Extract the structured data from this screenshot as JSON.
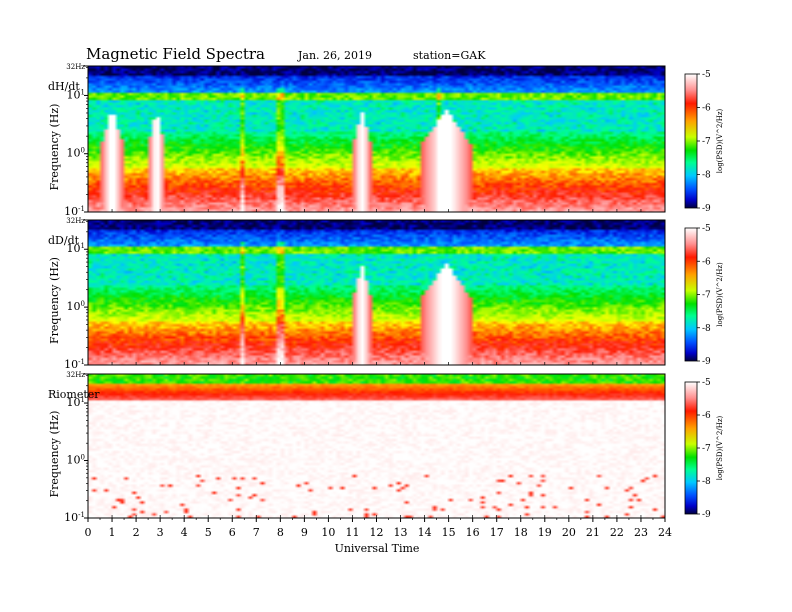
{
  "header": {
    "title": "Magnetic  Field  Spectra",
    "date": "Jan. 26, 2019",
    "station": "station=GAK"
  },
  "colors": {
    "colormap": [
      "#000040",
      "#0000c8",
      "#0050ff",
      "#00c8ff",
      "#00ff90",
      "#00e000",
      "#c8ff00",
      "#ffff00",
      "#ffa000",
      "#ff2000",
      "#e00000",
      "#ff9090",
      "#ffffff"
    ]
  },
  "chart_data": [
    {
      "type": "heatmap",
      "panel_label": "dH/dt",
      "ylabel": "Frequency  (Hz)",
      "xlabel": "",
      "y_scale": "log",
      "ylim_hz": [
        0.1,
        32
      ],
      "yticks": [
        {
          "label": "32Hz",
          "value": 32
        },
        {
          "label": "10",
          "sup": "1",
          "value": 10
        },
        {
          "label": "10",
          "sup": "0",
          "value": 1
        },
        {
          "label": "10",
          "sup": "-1",
          "value": 0.1
        }
      ],
      "xlim": [
        0,
        24
      ],
      "colorbar": {
        "label": "log(PSD)(V^2/Hz)",
        "range": [
          -9,
          -5
        ],
        "ticks": [
          "-5",
          "-6",
          "-7",
          "-8",
          "-9"
        ]
      },
      "features": {
        "quiet_hours": [
          [
            0.5,
            1.5
          ],
          [
            2.5,
            3.2
          ],
          [
            11,
            11.8
          ],
          [
            13.8,
            16
          ]
        ],
        "spikes_hours": [
          6.4,
          8.0,
          14.6
        ]
      }
    },
    {
      "type": "heatmap",
      "panel_label": "dD/dt",
      "ylabel": "Frequency  (Hz)",
      "xlabel": "",
      "y_scale": "log",
      "ylim_hz": [
        0.1,
        32
      ],
      "yticks": [
        {
          "label": "32Hz",
          "value": 32
        },
        {
          "label": "10",
          "sup": "1",
          "value": 10
        },
        {
          "label": "10",
          "sup": "0",
          "value": 1
        },
        {
          "label": "10",
          "sup": "-1",
          "value": 0.1
        }
      ],
      "xlim": [
        0,
        24
      ],
      "colorbar": {
        "label": "log(PSD)(V^2/Hz)",
        "range": [
          -9,
          -5
        ],
        "ticks": [
          "-5",
          "-6",
          "-7",
          "-8",
          "-9"
        ]
      },
      "features": {
        "quiet_hours": [
          [
            11,
            11.8
          ],
          [
            13.8,
            16
          ]
        ],
        "spikes_hours": [
          6.4,
          8.0
        ]
      }
    },
    {
      "type": "heatmap",
      "panel_label": "Riometer",
      "ylabel": "Frequency  (Hz)",
      "xlabel": "Universal  Time",
      "y_scale": "log",
      "ylim_hz": [
        0.1,
        32
      ],
      "yticks": [
        {
          "label": "32Hz",
          "value": 32
        },
        {
          "label": "10",
          "sup": "1",
          "value": 10
        },
        {
          "label": "10",
          "sup": "0",
          "value": 1
        },
        {
          "label": "10",
          "sup": "-1",
          "value": 0.1
        }
      ],
      "xlim": [
        0,
        24
      ],
      "xticks": [
        "0",
        "1",
        "2",
        "3",
        "4",
        "5",
        "6",
        "7",
        "8",
        "9",
        "10",
        "11",
        "12",
        "13",
        "14",
        "15",
        "16",
        "17",
        "18",
        "19",
        "20",
        "21",
        "22",
        "23",
        "24"
      ],
      "colorbar": {
        "label": "log(PSD)(V^2/Hz)",
        "range": [
          -9,
          -5
        ],
        "ticks": [
          "-5",
          "-6",
          "-7",
          "-8",
          "-9"
        ]
      },
      "features": {}
    }
  ]
}
